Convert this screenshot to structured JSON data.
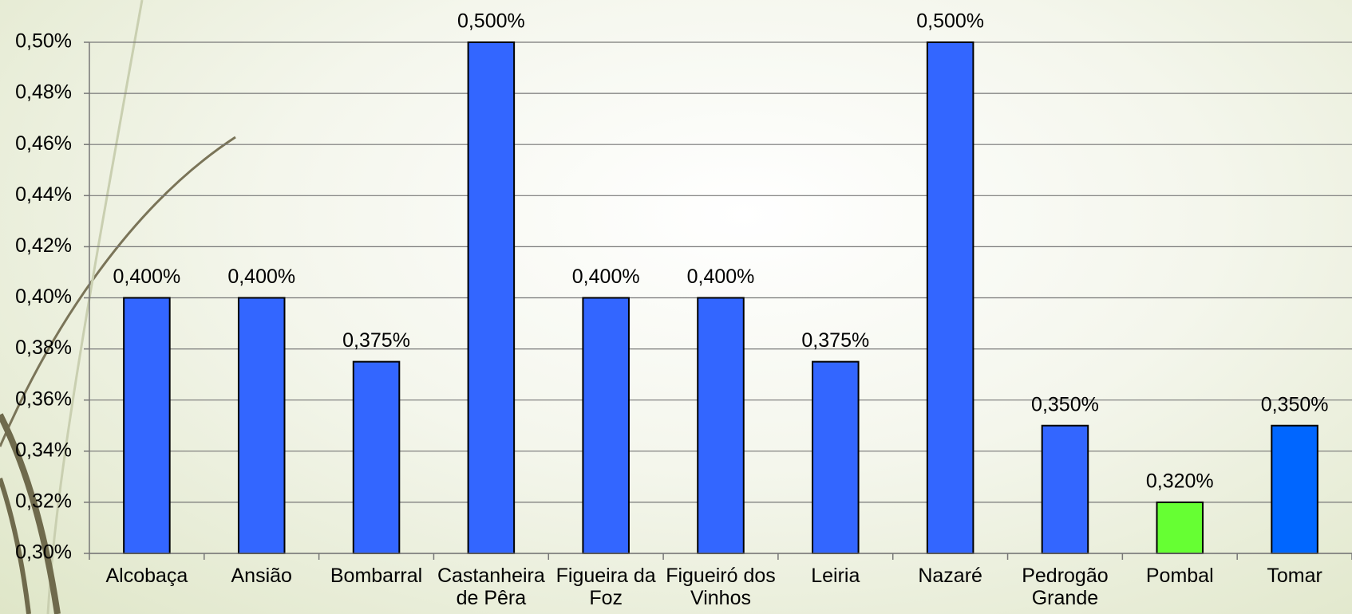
{
  "chart_data": {
    "type": "bar",
    "categories": [
      "Alcobaça",
      "Ansião",
      "Bombarral",
      "Castanheira de Pêra",
      "Figueira da Foz",
      "Figueiró dos Vinhos",
      "Leiria",
      "Nazaré",
      "Pedrogão Grande",
      "Pombal",
      "Tomar"
    ],
    "values": [
      0.4,
      0.4,
      0.375,
      0.5,
      0.4,
      0.4,
      0.375,
      0.5,
      0.35,
      0.32,
      0.35
    ],
    "value_labels": [
      "0,400%",
      "0,400%",
      "0,375%",
      "0,500%",
      "0,400%",
      "0,400%",
      "0,375%",
      "0,500%",
      "0,350%",
      "0,320%",
      "0,350%"
    ],
    "colors": [
      "#3366ff",
      "#3366ff",
      "#3366ff",
      "#3366ff",
      "#3366ff",
      "#3366ff",
      "#3366ff",
      "#3366ff",
      "#3366ff",
      "#66ff33",
      "#0066ff"
    ],
    "ylim": [
      0.3,
      0.5
    ],
    "yticks": [
      {
        "value": 0.3,
        "label": "0,30%"
      },
      {
        "value": 0.32,
        "label": "0,32%"
      },
      {
        "value": 0.34,
        "label": "0,34%"
      },
      {
        "value": 0.36,
        "label": "0,36%"
      },
      {
        "value": 0.38,
        "label": "0,38%"
      },
      {
        "value": 0.4,
        "label": "0,40%"
      },
      {
        "value": 0.42,
        "label": "0,42%"
      },
      {
        "value": 0.44,
        "label": "0,44%"
      },
      {
        "value": 0.46,
        "label": "0,46%"
      },
      {
        "value": 0.48,
        "label": "0,48%"
      },
      {
        "value": 0.5,
        "label": "0,50%"
      }
    ],
    "grid": true
  }
}
